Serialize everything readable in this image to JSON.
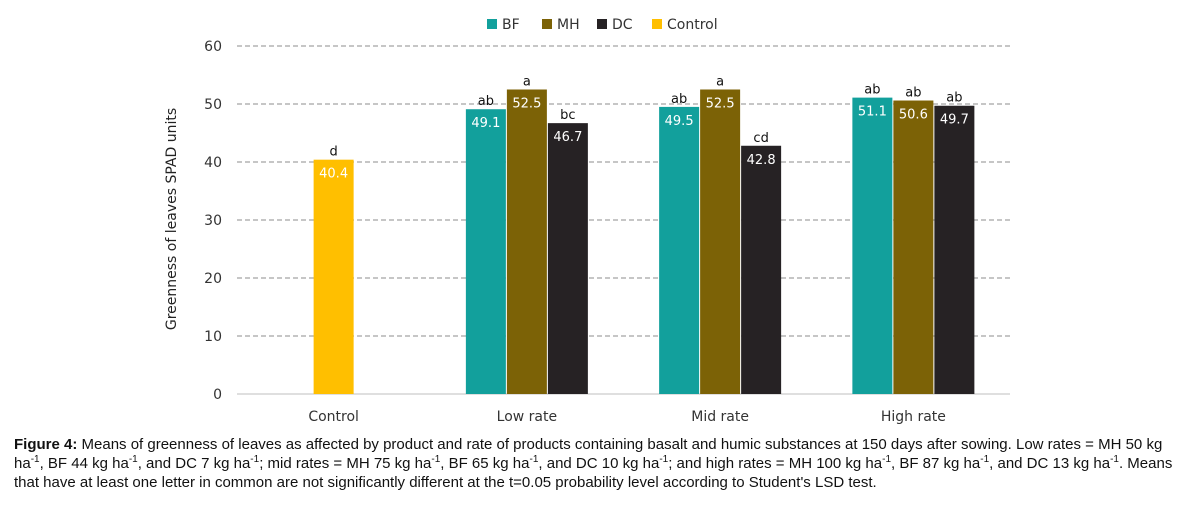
{
  "chart_data": {
    "type": "bar",
    "ylabel": "Greenness of leaves SPAD units",
    "xlabel": "",
    "ylim": [
      0,
      60
    ],
    "yticks": [
      0,
      10,
      20,
      30,
      40,
      50,
      60
    ],
    "grid": "horizontal dashed",
    "legend_position": "top-center",
    "categories": [
      "Control",
      "Low rate",
      "Mid rate",
      "High rate"
    ],
    "series": [
      {
        "name": "BF",
        "color": "#12A09C",
        "values": [
          null,
          49.1,
          49.5,
          51.1
        ],
        "letters": [
          null,
          "ab",
          "ab",
          "ab"
        ]
      },
      {
        "name": "MH",
        "color": "#7C6206",
        "values": [
          null,
          52.5,
          52.5,
          50.6
        ],
        "letters": [
          null,
          "a",
          "a",
          "ab"
        ]
      },
      {
        "name": "DC",
        "color": "#262224",
        "values": [
          null,
          46.7,
          42.8,
          49.7
        ],
        "letters": [
          null,
          "bc",
          "cd",
          "ab"
        ]
      },
      {
        "name": "Control",
        "color": "#FFBF00",
        "values": [
          40.4,
          null,
          null,
          null
        ],
        "letters": [
          "d",
          null,
          null,
          null
        ]
      }
    ]
  },
  "caption": {
    "label": "Figure 4:",
    "parts": [
      {
        "t": " Means of greenness of leaves as affected by product and rate of products containing basalt and humic substances at 150 days after sowing. Low rates = MH 50 kg ha"
      },
      {
        "sup": "-1"
      },
      {
        "t": ", BF 44 kg ha"
      },
      {
        "sup": "-1"
      },
      {
        "t": ", and DC 7 kg ha"
      },
      {
        "sup": "-1"
      },
      {
        "t": "; mid rates = MH 75 kg ha"
      },
      {
        "sup": "-1"
      },
      {
        "t": ", BF 65 kg ha"
      },
      {
        "sup": "-1"
      },
      {
        "t": ", and DC 10 kg ha"
      },
      {
        "sup": "-1"
      },
      {
        "t": "; and high rates = MH 100 kg ha"
      },
      {
        "sup": "-1"
      },
      {
        "t": ", BF 87 kg ha"
      },
      {
        "sup": "-1"
      },
      {
        "t": ", and DC 13 kg ha"
      },
      {
        "sup": "-1"
      },
      {
        "t": ". Means that have at least one letter in common are not significantly different at the t=0.05 probability level according to Student's LSD test."
      }
    ]
  }
}
